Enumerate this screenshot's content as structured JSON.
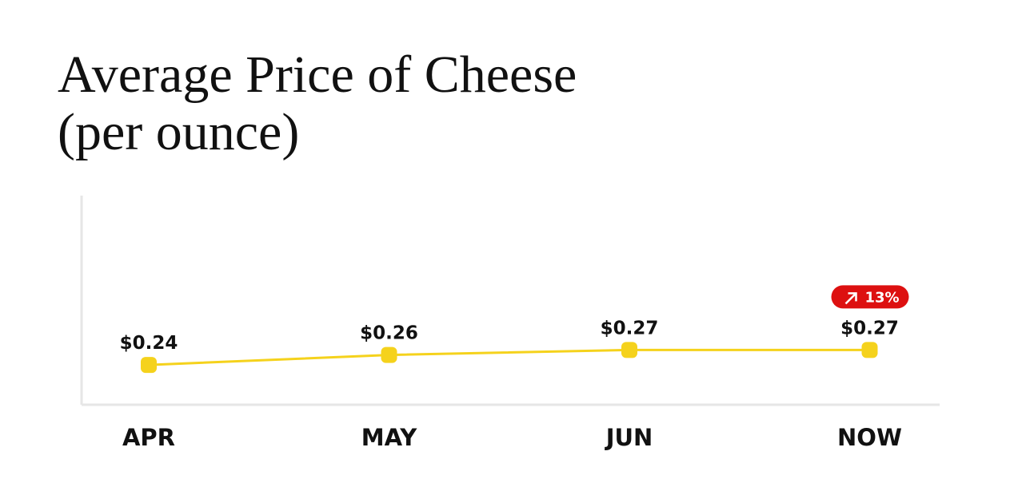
{
  "chart_data": {
    "type": "line",
    "title": [
      "Average Price of Cheese",
      "(per ounce)"
    ],
    "categories": [
      "APR",
      "MAY",
      "JUN",
      "NOW"
    ],
    "series": [
      {
        "color": "#f5d21c",
        "values": [
          0.24,
          0.26,
          0.27,
          0.27
        ],
        "value_labels": [
          "$0.24",
          "$0.26",
          "$0.27",
          "$0.27"
        ]
      }
    ],
    "annotation": "13%",
    "annotation_color": "#dd1010",
    "ylim": [
      0.16,
      0.58
    ]
  }
}
